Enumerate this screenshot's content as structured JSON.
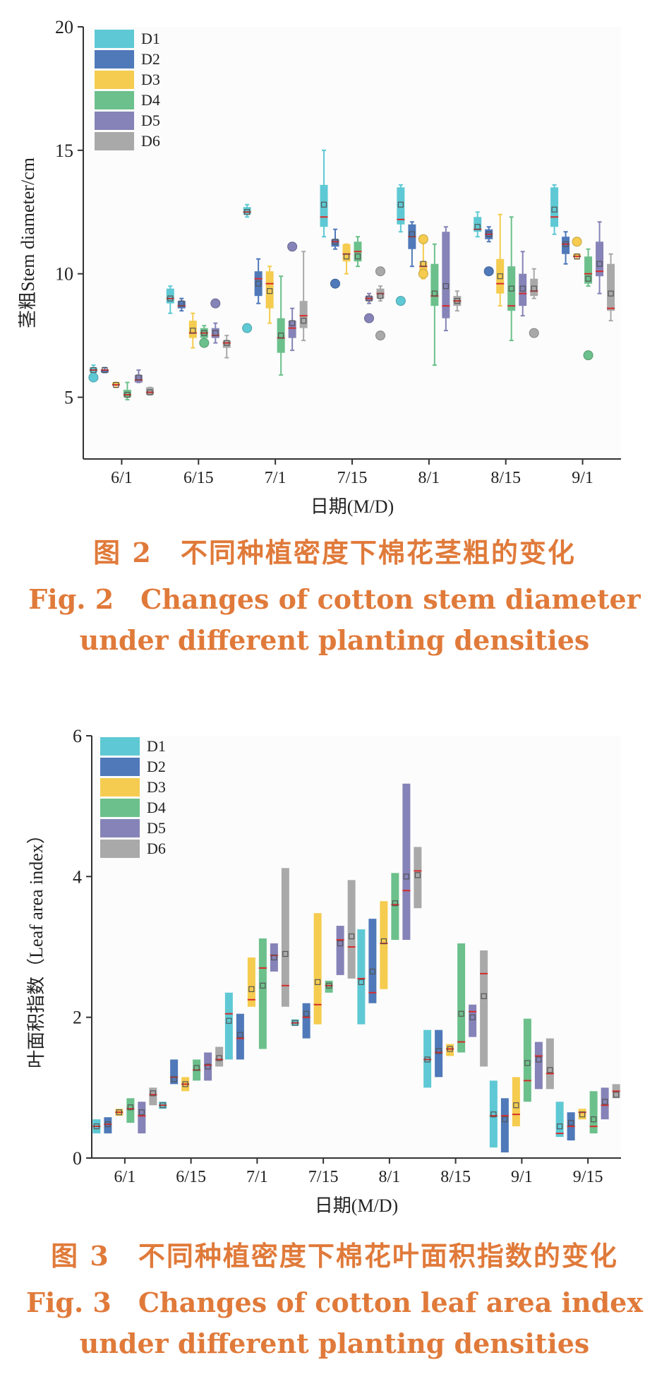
{
  "colors": {
    "D1": "#5ec9d4",
    "D2": "#4f79b9",
    "D3": "#f5cc4f",
    "D4": "#6cc08b",
    "D5": "#8583b7",
    "D6": "#a9a9a9",
    "caption": "#e07a3a",
    "median": "#d62b2b"
  },
  "chart_data": [
    {
      "type": "box",
      "ylabel": "茎粗Stem diameter/cm",
      "xlabel": "日期(M/D)",
      "ylim": [
        2.5,
        20
      ],
      "yticks": [
        5,
        10,
        15,
        20
      ],
      "categories": [
        "6/1",
        "6/15",
        "7/1",
        "7/15",
        "8/1",
        "8/15",
        "9/1"
      ],
      "legend": {
        "placement": "top-left",
        "entries": [
          "D1",
          "D2",
          "D3",
          "D4",
          "D5",
          "D6"
        ]
      },
      "series": [
        {
          "name": "D1",
          "boxes": [
            {
              "min": 5.9,
              "q1": 6.0,
              "median": 6.1,
              "mean": 6.1,
              "q3": 6.2,
              "max": 6.3,
              "outliers": [
                5.8
              ]
            },
            {
              "min": 8.4,
              "q1": 8.8,
              "median": 9.0,
              "mean": 9.0,
              "q3": 9.4,
              "max": 9.5,
              "outliers": []
            },
            {
              "min": 12.3,
              "q1": 12.4,
              "median": 12.5,
              "mean": 12.5,
              "q3": 12.7,
              "max": 12.8,
              "outliers": [
                7.8
              ]
            },
            {
              "min": 11.5,
              "q1": 11.9,
              "median": 12.3,
              "mean": 12.8,
              "q3": 13.6,
              "max": 15.0,
              "outliers": []
            },
            {
              "min": 11.7,
              "q1": 12.0,
              "median": 12.2,
              "mean": 12.8,
              "q3": 13.5,
              "max": 13.6,
              "outliers": [
                8.9
              ]
            },
            {
              "min": 11.5,
              "q1": 11.7,
              "median": 11.8,
              "mean": 11.9,
              "q3": 12.3,
              "max": 12.5,
              "outliers": []
            },
            {
              "min": 11.6,
              "q1": 11.9,
              "median": 12.3,
              "mean": 12.6,
              "q3": 13.5,
              "max": 13.6,
              "outliers": []
            }
          ]
        },
        {
          "name": "D2",
          "boxes": [
            {
              "min": 6.0,
              "q1": 6.0,
              "median": 6.1,
              "mean": 6.1,
              "q3": 6.1,
              "max": 6.2,
              "outliers": []
            },
            {
              "min": 8.5,
              "q1": 8.6,
              "median": 8.7,
              "mean": 8.8,
              "q3": 8.9,
              "max": 9.0,
              "outliers": []
            },
            {
              "min": 8.8,
              "q1": 9.1,
              "median": 9.8,
              "mean": 9.6,
              "q3": 10.1,
              "max": 10.6,
              "outliers": []
            },
            {
              "min": 11.0,
              "q1": 11.1,
              "median": 11.3,
              "mean": 11.3,
              "q3": 11.4,
              "max": 11.8,
              "outliers": [
                9.6
              ]
            },
            {
              "min": 10.3,
              "q1": 11.0,
              "median": 11.5,
              "mean": 11.6,
              "q3": 12.0,
              "max": 12.1,
              "outliers": []
            },
            {
              "min": 11.3,
              "q1": 11.4,
              "median": 11.6,
              "mean": 11.6,
              "q3": 11.8,
              "max": 11.9,
              "outliers": [
                10.1
              ]
            },
            {
              "min": 10.4,
              "q1": 10.8,
              "median": 11.2,
              "mean": 11.2,
              "q3": 11.5,
              "max": 11.7,
              "outliers": []
            }
          ]
        },
        {
          "name": "D3",
          "boxes": [
            {
              "min": 5.4,
              "q1": 5.5,
              "median": 5.5,
              "mean": 5.5,
              "q3": 5.6,
              "max": 5.6,
              "outliers": []
            },
            {
              "min": 7.0,
              "q1": 7.4,
              "median": 7.6,
              "mean": 7.7,
              "q3": 8.1,
              "max": 8.4,
              "outliers": []
            },
            {
              "min": 8.0,
              "q1": 8.6,
              "median": 9.6,
              "mean": 9.3,
              "q3": 10.1,
              "max": 10.3,
              "outliers": []
            },
            {
              "min": 10.0,
              "q1": 10.5,
              "median": 10.8,
              "mean": 10.7,
              "q3": 11.2,
              "max": 11.2,
              "outliers": []
            },
            {
              "min": 9.8,
              "q1": 9.9,
              "median": 10.3,
              "mean": 10.4,
              "q3": 10.5,
              "max": 11.4,
              "outliers": [
                11.4,
                10.0
              ]
            },
            {
              "min": 8.7,
              "q1": 9.2,
              "median": 9.6,
              "mean": 9.9,
              "q3": 10.6,
              "max": 12.4,
              "outliers": []
            },
            {
              "min": 10.6,
              "q1": 10.7,
              "median": 10.7,
              "mean": 10.7,
              "q3": 10.8,
              "max": 10.8,
              "outliers": [
                11.3
              ]
            }
          ]
        },
        {
          "name": "D4",
          "boxes": [
            {
              "min": 4.9,
              "q1": 5.0,
              "median": 5.1,
              "mean": 5.1,
              "q3": 5.3,
              "max": 5.6,
              "outliers": []
            },
            {
              "min": 7.2,
              "q1": 7.4,
              "median": 7.6,
              "mean": 7.6,
              "q3": 7.8,
              "max": 7.9,
              "outliers": [
                7.2
              ]
            },
            {
              "min": 5.9,
              "q1": 6.8,
              "median": 7.4,
              "mean": 7.5,
              "q3": 8.2,
              "max": 9.9,
              "outliers": []
            },
            {
              "min": 10.3,
              "q1": 10.5,
              "median": 10.9,
              "mean": 10.7,
              "q3": 11.3,
              "max": 11.5,
              "outliers": []
            },
            {
              "min": 6.3,
              "q1": 8.7,
              "median": 9.1,
              "mean": 9.2,
              "q3": 10.4,
              "max": 11.2,
              "outliers": []
            },
            {
              "min": 7.3,
              "q1": 8.5,
              "median": 8.7,
              "mean": 9.4,
              "q3": 10.3,
              "max": 12.3,
              "outliers": []
            },
            {
              "min": 9.5,
              "q1": 9.6,
              "median": 10.0,
              "mean": 9.8,
              "q3": 10.7,
              "max": 11.0,
              "outliers": [
                6.7
              ]
            }
          ]
        },
        {
          "name": "D5",
          "boxes": [
            {
              "min": 5.6,
              "q1": 5.6,
              "median": 5.7,
              "mean": 5.8,
              "q3": 5.9,
              "max": 6.1,
              "outliers": []
            },
            {
              "min": 7.2,
              "q1": 7.4,
              "median": 7.5,
              "mean": 7.6,
              "q3": 7.8,
              "max": 8.0,
              "outliers": [
                8.8
              ]
            },
            {
              "min": 6.9,
              "q1": 7.4,
              "median": 7.8,
              "mean": 8.0,
              "q3": 8.1,
              "max": 8.6,
              "outliers": [
                11.1
              ]
            },
            {
              "min": 8.8,
              "q1": 8.9,
              "median": 9.0,
              "mean": 9.0,
              "q3": 9.1,
              "max": 9.2,
              "outliers": [
                8.2
              ]
            },
            {
              "min": 7.7,
              "q1": 8.2,
              "median": 8.7,
              "mean": 9.5,
              "q3": 11.7,
              "max": 11.9,
              "outliers": []
            },
            {
              "min": 8.3,
              "q1": 8.7,
              "median": 9.2,
              "mean": 9.4,
              "q3": 10.0,
              "max": 10.9,
              "outliers": []
            },
            {
              "min": 9.2,
              "q1": 9.9,
              "median": 10.1,
              "mean": 10.4,
              "q3": 11.3,
              "max": 12.1,
              "outliers": []
            }
          ]
        },
        {
          "name": "D6",
          "boxes": [
            {
              "min": 5.1,
              "q1": 5.1,
              "median": 5.2,
              "mean": 5.2,
              "q3": 5.4,
              "max": 5.4,
              "outliers": []
            },
            {
              "min": 6.6,
              "q1": 7.0,
              "median": 7.2,
              "mean": 7.2,
              "q3": 7.3,
              "max": 7.5,
              "outliers": []
            },
            {
              "min": 7.3,
              "q1": 7.8,
              "median": 8.3,
              "mean": 8.1,
              "q3": 8.9,
              "max": 10.9,
              "outliers": []
            },
            {
              "min": 8.9,
              "q1": 9.0,
              "median": 9.2,
              "mean": 9.1,
              "q3": 9.4,
              "max": 9.5,
              "outliers": [
                10.1,
                7.5
              ]
            },
            {
              "min": 8.5,
              "q1": 8.7,
              "median": 8.9,
              "mean": 8.9,
              "q3": 9.1,
              "max": 9.3,
              "outliers": []
            },
            {
              "min": 9.0,
              "q1": 9.1,
              "median": 9.3,
              "mean": 9.4,
              "q3": 9.8,
              "max": 10.2,
              "outliers": [
                7.6
              ]
            },
            {
              "min": 8.1,
              "q1": 8.5,
              "median": 8.6,
              "mean": 9.2,
              "q3": 10.4,
              "max": 10.8,
              "outliers": []
            }
          ]
        }
      ]
    },
    {
      "type": "box",
      "ylabel": "叶面积指数（Leaf area index）",
      "xlabel": "日期(M/D)",
      "ylim": [
        0,
        6
      ],
      "yticks": [
        0,
        2,
        4,
        6
      ],
      "categories": [
        "6/1",
        "6/15",
        "7/1",
        "7/15",
        "8/1",
        "8/15",
        "9/1",
        "9/15"
      ],
      "legend": {
        "placement": "top-left",
        "entries": [
          "D1",
          "D2",
          "D3",
          "D4",
          "D5",
          "D6"
        ]
      },
      "series": [
        {
          "name": "D1",
          "boxes": [
            {
              "q1": 0.35,
              "median": 0.45,
              "mean": 0.45,
              "q3": 0.55
            },
            {
              "q1": 0.7,
              "median": 0.75,
              "mean": 0.75,
              "q3": 0.8
            },
            {
              "q1": 1.4,
              "median": 2.05,
              "mean": 1.95,
              "q3": 2.35
            },
            {
              "q1": 1.88,
              "median": 1.92,
              "mean": 1.92,
              "q3": 1.97
            },
            {
              "q1": 1.9,
              "median": 2.55,
              "mean": 2.5,
              "q3": 3.25
            },
            {
              "q1": 1.0,
              "median": 1.4,
              "mean": 1.4,
              "q3": 1.82
            },
            {
              "q1": 0.15,
              "median": 0.6,
              "mean": 0.62,
              "q3": 1.1
            },
            {
              "q1": 0.3,
              "median": 0.35,
              "mean": 0.45,
              "q3": 0.8
            }
          ]
        },
        {
          "name": "D2",
          "boxes": [
            {
              "q1": 0.35,
              "median": 0.48,
              "mean": 0.48,
              "q3": 0.58
            },
            {
              "q1": 1.05,
              "median": 1.15,
              "mean": 1.12,
              "q3": 1.4
            },
            {
              "q1": 1.4,
              "median": 1.7,
              "mean": 1.75,
              "q3": 2.05
            },
            {
              "q1": 1.7,
              "median": 2.0,
              "mean": 2.05,
              "q3": 2.2
            },
            {
              "q1": 2.2,
              "median": 2.35,
              "mean": 2.65,
              "q3": 3.4
            },
            {
              "q1": 1.15,
              "median": 1.5,
              "mean": 1.52,
              "q3": 1.82
            },
            {
              "q1": 0.08,
              "median": 0.6,
              "mean": 0.55,
              "q3": 0.85
            },
            {
              "q1": 0.25,
              "median": 0.45,
              "mean": 0.5,
              "q3": 0.65
            }
          ]
        },
        {
          "name": "D3",
          "boxes": [
            {
              "q1": 0.6,
              "median": 0.65,
              "mean": 0.65,
              "q3": 0.7
            },
            {
              "q1": 0.95,
              "median": 1.05,
              "mean": 1.05,
              "q3": 1.15
            },
            {
              "q1": 2.15,
              "median": 2.25,
              "mean": 2.4,
              "q3": 2.85
            },
            {
              "q1": 1.9,
              "median": 2.18,
              "mean": 2.5,
              "q3": 3.48
            },
            {
              "q1": 2.4,
              "median": 3.05,
              "mean": 3.08,
              "q3": 3.65
            },
            {
              "q1": 1.45,
              "median": 1.55,
              "mean": 1.55,
              "q3": 1.62
            },
            {
              "q1": 0.45,
              "median": 0.62,
              "mean": 0.75,
              "q3": 1.15
            },
            {
              "q1": 0.55,
              "median": 0.65,
              "mean": 0.62,
              "q3": 0.7
            }
          ]
        },
        {
          "name": "D4",
          "boxes": [
            {
              "q1": 0.5,
              "median": 0.7,
              "mean": 0.72,
              "q3": 0.85
            },
            {
              "q1": 1.1,
              "median": 1.25,
              "mean": 1.28,
              "q3": 1.4
            },
            {
              "q1": 1.55,
              "median": 2.7,
              "mean": 2.45,
              "q3": 3.12
            },
            {
              "q1": 2.35,
              "median": 2.45,
              "mean": 2.45,
              "q3": 2.52
            },
            {
              "q1": 3.1,
              "median": 3.6,
              "mean": 3.62,
              "q3": 4.05
            },
            {
              "q1": 1.5,
              "median": 1.65,
              "mean": 2.05,
              "q3": 3.05
            },
            {
              "q1": 0.8,
              "median": 1.1,
              "mean": 1.35,
              "q3": 1.98
            },
            {
              "q1": 0.35,
              "median": 0.45,
              "mean": 0.55,
              "q3": 0.95
            }
          ]
        },
        {
          "name": "D5",
          "boxes": [
            {
              "q1": 0.35,
              "median": 0.6,
              "mean": 0.65,
              "q3": 0.8
            },
            {
              "q1": 1.1,
              "median": 1.32,
              "mean": 1.3,
              "q3": 1.5
            },
            {
              "q1": 2.65,
              "median": 2.88,
              "mean": 2.85,
              "q3": 3.05
            },
            {
              "q1": 2.6,
              "median": 3.1,
              "mean": 3.05,
              "q3": 3.3
            },
            {
              "q1": 3.1,
              "median": 3.8,
              "mean": 4.0,
              "q3": 5.32
            },
            {
              "q1": 1.72,
              "median": 2.08,
              "mean": 2.0,
              "q3": 2.18
            },
            {
              "q1": 0.98,
              "median": 1.45,
              "mean": 1.4,
              "q3": 1.65
            },
            {
              "q1": 0.55,
              "median": 0.75,
              "mean": 0.8,
              "q3": 1.0
            }
          ]
        },
        {
          "name": "D6",
          "boxes": [
            {
              "q1": 0.75,
              "median": 0.9,
              "mean": 0.92,
              "q3": 1.0
            },
            {
              "q1": 1.3,
              "median": 1.4,
              "mean": 1.42,
              "q3": 1.58
            },
            {
              "q1": 2.15,
              "median": 2.45,
              "mean": 2.9,
              "q3": 4.12
            },
            {
              "q1": 2.55,
              "median": 3.0,
              "mean": 3.15,
              "q3": 3.95
            },
            {
              "q1": 3.55,
              "median": 4.08,
              "mean": 4.02,
              "q3": 4.42
            },
            {
              "q1": 1.3,
              "median": 2.62,
              "mean": 2.3,
              "q3": 2.95
            },
            {
              "q1": 0.98,
              "median": 1.2,
              "mean": 1.25,
              "q3": 1.7
            },
            {
              "q1": 0.85,
              "median": 0.95,
              "mean": 0.9,
              "q3": 1.05
            }
          ]
        }
      ]
    }
  ],
  "captions": [
    {
      "zh": "图 2　不同种植密度下棉花茎粗的变化",
      "en_line1": "Fig. 2　Changes of cotton stem diameter",
      "en_line2": "under different planting densities"
    },
    {
      "zh": "图 3　不同种植密度下棉花叶面积指数的变化",
      "en_line1": "Fig. 3　Changes of cotton leaf area index",
      "en_line2": "under different planting densities"
    }
  ]
}
